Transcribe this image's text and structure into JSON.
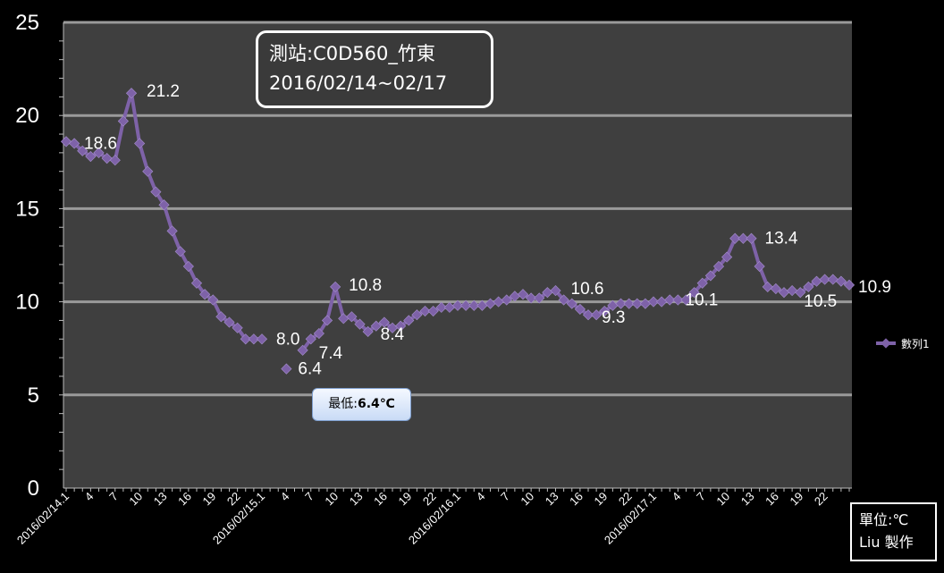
{
  "chart_data": {
    "type": "line",
    "title_lines": [
      "測站:C0D560_竹東",
      "2016/02/14~02/17"
    ],
    "ylim": [
      0,
      25
    ],
    "y_ticks": [
      0,
      5,
      10,
      15,
      20,
      25
    ],
    "grid": "horizontal",
    "x_tick_labels": [
      {
        "i": 0,
        "label": "2016/02/14.1"
      },
      {
        "i": 3,
        "label": "4"
      },
      {
        "i": 6,
        "label": "7"
      },
      {
        "i": 9,
        "label": "10"
      },
      {
        "i": 12,
        "label": "13"
      },
      {
        "i": 15,
        "label": "16"
      },
      {
        "i": 18,
        "label": "19"
      },
      {
        "i": 21,
        "label": "22"
      },
      {
        "i": 24,
        "label": "2016/02/15.1"
      },
      {
        "i": 27,
        "label": "4"
      },
      {
        "i": 30,
        "label": "7"
      },
      {
        "i": 33,
        "label": "10"
      },
      {
        "i": 36,
        "label": "13"
      },
      {
        "i": 39,
        "label": "16"
      },
      {
        "i": 42,
        "label": "19"
      },
      {
        "i": 45,
        "label": "22"
      },
      {
        "i": 48,
        "label": "2016/02/16.1"
      },
      {
        "i": 51,
        "label": "4"
      },
      {
        "i": 54,
        "label": "7"
      },
      {
        "i": 57,
        "label": "10"
      },
      {
        "i": 60,
        "label": "13"
      },
      {
        "i": 63,
        "label": "16"
      },
      {
        "i": 66,
        "label": "19"
      },
      {
        "i": 69,
        "label": "22"
      },
      {
        "i": 72,
        "label": "2016/02/17.1"
      },
      {
        "i": 75,
        "label": "4"
      },
      {
        "i": 78,
        "label": "7"
      },
      {
        "i": 81,
        "label": "10"
      },
      {
        "i": 84,
        "label": "13"
      },
      {
        "i": 87,
        "label": "16"
      },
      {
        "i": 90,
        "label": "19"
      },
      {
        "i": 93,
        "label": "22"
      }
    ],
    "series": [
      {
        "name": "數列1",
        "color": "#7e62a8",
        "values": [
          18.6,
          18.5,
          18.1,
          17.8,
          18.0,
          17.7,
          17.6,
          19.7,
          21.2,
          18.5,
          17.0,
          15.9,
          15.2,
          13.8,
          12.7,
          11.9,
          11.0,
          10.4,
          10.1,
          9.2,
          8.9,
          8.6,
          8.0,
          8.0,
          8.0,
          null,
          null,
          6.4,
          null,
          7.4,
          8.0,
          8.3,
          9.0,
          10.8,
          9.1,
          9.2,
          8.8,
          8.4,
          8.7,
          8.9,
          8.6,
          8.7,
          9.0,
          9.3,
          9.5,
          9.5,
          9.7,
          9.7,
          9.8,
          9.8,
          9.8,
          9.8,
          9.9,
          10.0,
          10.1,
          10.3,
          10.4,
          10.2,
          10.2,
          10.5,
          10.6,
          10.1,
          9.9,
          9.6,
          9.3,
          9.3,
          9.5,
          9.8,
          9.9,
          9.9,
          9.9,
          9.9,
          10.0,
          10.0,
          10.1,
          10.1,
          10.1,
          10.5,
          11.0,
          11.4,
          11.9,
          12.4,
          13.4,
          13.4,
          13.4,
          11.9,
          10.8,
          10.7,
          10.5,
          10.6,
          10.5,
          10.8,
          11.1,
          11.2,
          11.2,
          11.1,
          10.9
        ]
      }
    ],
    "data_labels": [
      {
        "i": 0,
        "text": "18.6",
        "dx": 20,
        "dy": 8
      },
      {
        "i": 8,
        "text": "21.2",
        "dx": 17,
        "dy": 4
      },
      {
        "i": 24,
        "text": "8.0",
        "dx": 16,
        "dy": 6
      },
      {
        "i": 27,
        "text": "6.4",
        "dx": 13,
        "dy": 6
      },
      {
        "i": 29,
        "text": "7.4",
        "dx": 18,
        "dy": 9
      },
      {
        "i": 33,
        "text": "10.8",
        "dx": 15,
        "dy": 4
      },
      {
        "i": 37,
        "text": "8.4",
        "dx": 14,
        "dy": 9
      },
      {
        "i": 60,
        "text": "10.6",
        "dx": 17,
        "dy": 4
      },
      {
        "i": 64,
        "text": "9.3",
        "dx": 15,
        "dy": 9
      },
      {
        "i": 75,
        "text": "10.1",
        "dx": 8,
        "dy": 6
      },
      {
        "i": 84,
        "text": "13.4",
        "dx": 15,
        "dy": 6
      },
      {
        "i": 90,
        "text": "10.5",
        "dx": 4,
        "dy": 16
      },
      {
        "i": 96,
        "text": "10.9",
        "dx": 10,
        "dy": 8
      }
    ],
    "legend": {
      "position": "right",
      "label": "數列1"
    },
    "min_callout": {
      "prefix": "最低:",
      "value": "6.4℃"
    },
    "unit_note": [
      "單位:℃",
      "Liu 製作"
    ]
  },
  "colors": {
    "background": "#000000",
    "plot_area": "#3f3f3f",
    "grid": "#9a9a9a",
    "series": "#7e62a8"
  }
}
